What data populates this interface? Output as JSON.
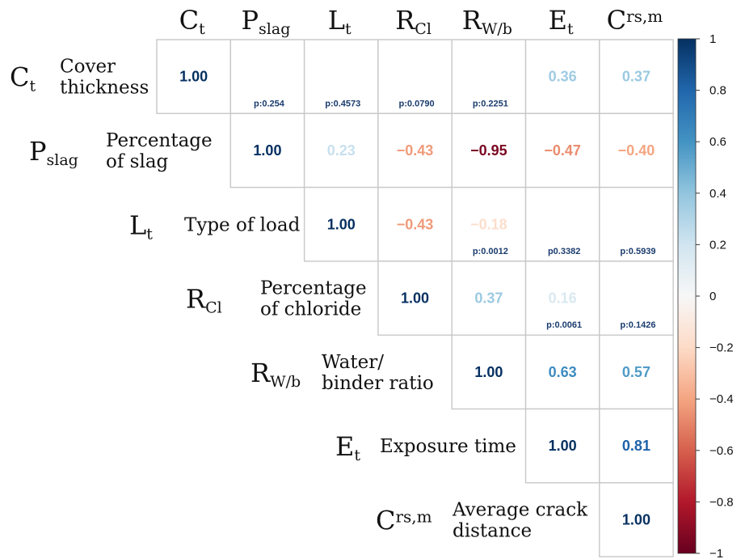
{
  "chart_data": {
    "type": "heatmap",
    "variables": [
      {
        "symbol": "C",
        "sub": "t",
        "sup": "",
        "description": [
          "Cover",
          "thickness"
        ]
      },
      {
        "symbol": "P",
        "sub": "slag",
        "sup": "",
        "description": [
          "Percentage",
          "of slag"
        ]
      },
      {
        "symbol": "L",
        "sub": "t",
        "sup": "",
        "description": [
          "Type of load"
        ]
      },
      {
        "symbol": "R",
        "sub": "Cl",
        "sup": "",
        "description": [
          "Percentage",
          "of chloride"
        ]
      },
      {
        "symbol": "R",
        "sub": "W/b",
        "sup": "",
        "description": [
          "Water/",
          "binder ratio"
        ]
      },
      {
        "symbol": "E",
        "sub": "t",
        "sup": "",
        "description": [
          "Exposure time"
        ]
      },
      {
        "symbol": "C",
        "sub": "",
        "sup": "rs,m",
        "description": [
          "Average crack",
          "distance"
        ]
      }
    ],
    "cells": [
      {
        "row": 0,
        "col": 0,
        "value": 1.0,
        "label": "1.00"
      },
      {
        "row": 0,
        "col": 1,
        "value": null,
        "p": "p:0.254"
      },
      {
        "row": 0,
        "col": 2,
        "value": null,
        "p": "p:0.4573"
      },
      {
        "row": 0,
        "col": 3,
        "value": null,
        "p": "p:0.0790"
      },
      {
        "row": 0,
        "col": 4,
        "value": null,
        "p": "p:0.2251"
      },
      {
        "row": 0,
        "col": 5,
        "value": 0.36,
        "label": "0.36"
      },
      {
        "row": 0,
        "col": 6,
        "value": 0.37,
        "label": "0.37"
      },
      {
        "row": 1,
        "col": 1,
        "value": 1.0,
        "label": "1.00"
      },
      {
        "row": 1,
        "col": 2,
        "value": 0.23,
        "label": "0.23"
      },
      {
        "row": 1,
        "col": 3,
        "value": -0.43,
        "label": "−0.43"
      },
      {
        "row": 1,
        "col": 4,
        "value": -0.95,
        "label": "−0.95"
      },
      {
        "row": 1,
        "col": 5,
        "value": -0.47,
        "label": "−0.47"
      },
      {
        "row": 1,
        "col": 6,
        "value": -0.4,
        "label": "−0.40"
      },
      {
        "row": 2,
        "col": 2,
        "value": 1.0,
        "label": "1.00"
      },
      {
        "row": 2,
        "col": 3,
        "value": -0.43,
        "label": "−0.43"
      },
      {
        "row": 2,
        "col": 4,
        "value": -0.18,
        "label": "−0.18",
        "p": "p:0.0012"
      },
      {
        "row": 2,
        "col": 5,
        "value": null,
        "p": "p0.3382"
      },
      {
        "row": 2,
        "col": 6,
        "value": null,
        "p": "p:0.5939"
      },
      {
        "row": 3,
        "col": 3,
        "value": 1.0,
        "label": "1.00"
      },
      {
        "row": 3,
        "col": 4,
        "value": 0.37,
        "label": "0.37"
      },
      {
        "row": 3,
        "col": 5,
        "value": 0.16,
        "label": "0.16",
        "p": "p:0.0061"
      },
      {
        "row": 3,
        "col": 6,
        "value": null,
        "p": "p:0.1426"
      },
      {
        "row": 4,
        "col": 4,
        "value": 1.0,
        "label": "1.00"
      },
      {
        "row": 4,
        "col": 5,
        "value": 0.63,
        "label": "0.63"
      },
      {
        "row": 4,
        "col": 6,
        "value": 0.57,
        "label": "0.57"
      },
      {
        "row": 5,
        "col": 5,
        "value": 1.0,
        "label": "1.00"
      },
      {
        "row": 5,
        "col": 6,
        "value": 0.81,
        "label": "0.81"
      },
      {
        "row": 6,
        "col": 6,
        "value": 1.0,
        "label": "1.00"
      }
    ],
    "colorbar": {
      "range": [
        -1,
        1
      ],
      "ticks": [
        "1",
        "0.8",
        "0.6",
        "0.4",
        "0.2",
        "0",
        "−0.2",
        "−0.4",
        "−0.6",
        "−0.8",
        "−1"
      ],
      "tick_values": [
        1,
        0.8,
        0.6,
        0.4,
        0.2,
        0,
        -0.2,
        -0.4,
        -0.6,
        -0.8,
        -1
      ],
      "colors": [
        "#67001f",
        "#b2182b",
        "#d6604d",
        "#f4a582",
        "#fddbc7",
        "#f7f7f7",
        "#d1e5f0",
        "#92c5de",
        "#4393c3",
        "#2166ac",
        "#053061"
      ]
    }
  }
}
